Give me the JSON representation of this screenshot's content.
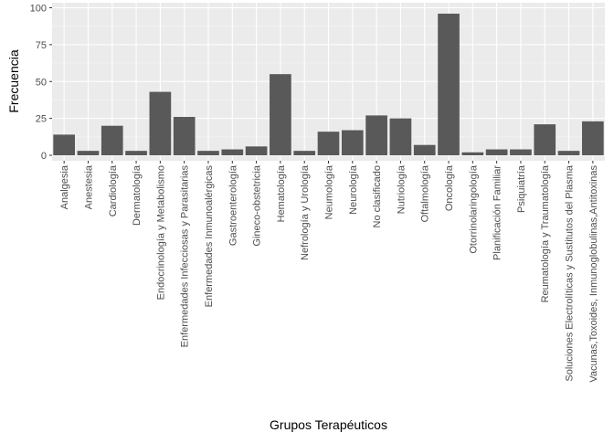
{
  "chart_data": {
    "type": "bar",
    "xlabel": "Grupos Terapéuticos",
    "ylabel": "Frecuencia",
    "ylim": [
      0,
      100
    ],
    "yticks": [
      0,
      25,
      50,
      75,
      100
    ],
    "grid": true,
    "colors": {
      "panel": "#ebebeb",
      "grid_major": "#ffffff",
      "grid_minor": "#f5f5f5",
      "bar": "#595959",
      "tick_text": "#4d4d4d",
      "tick_mark": "#333333"
    },
    "categories": [
      "Analgesia",
      "Anestesia",
      "Cardiología",
      "Dermatología",
      "Endocrinología y Metabolismo",
      "Enfermedades Infecciosas y Parasitarias",
      "Enfermedades Inmunoalérgicas",
      "Gastroenterología",
      "Gineco-obstetricia",
      "Hematología",
      "Nefrología y Urología",
      "Neumología",
      "Neurología",
      "No clasificado",
      "Nutriología",
      "Oftalmología",
      "Oncología",
      "Otorrinolaringología",
      "Planificación Familiar",
      "Psiquiatría",
      "Reumatología y Traumatología",
      "Soluciones Electrolíticas y Sustitutos del Plasma",
      "Vacunas,Toxoides, Inmunoglobulinas,Antitoxinas"
    ],
    "values": [
      14,
      3,
      20,
      3,
      43,
      26,
      3,
      4,
      6,
      55,
      3,
      16,
      17,
      27,
      25,
      7,
      96,
      2,
      4,
      4,
      21,
      3,
      23
    ]
  }
}
